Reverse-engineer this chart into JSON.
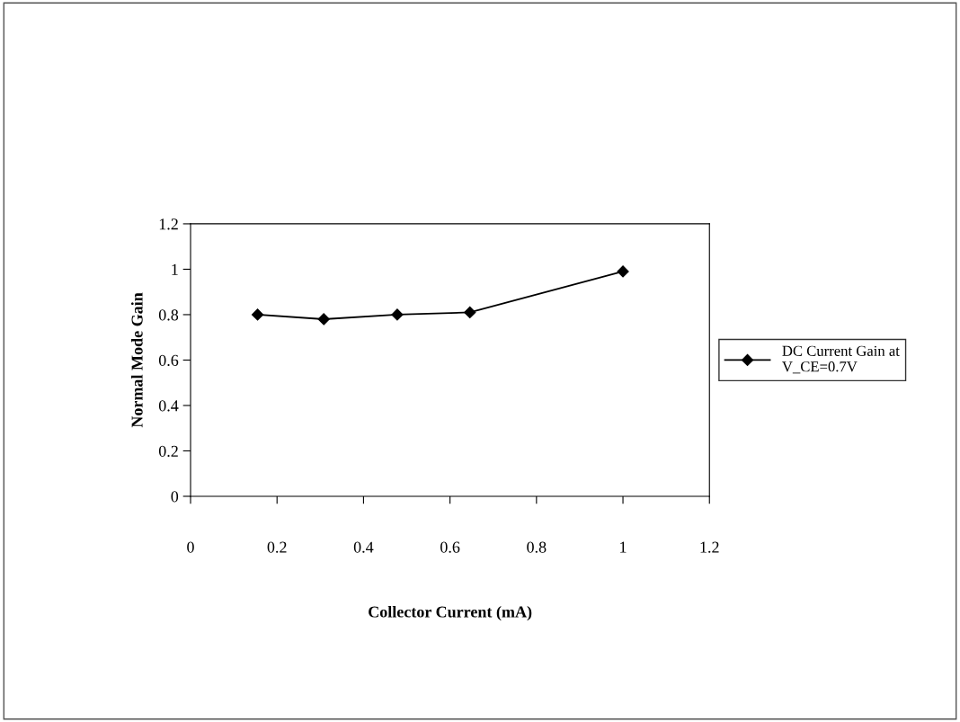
{
  "chart_data": {
    "type": "line",
    "xlabel": "Collector Current (mA)",
    "ylabel": "Normal Mode Gain",
    "x": [
      0.155,
      0.308,
      0.478,
      0.646,
      1.0
    ],
    "series": [
      {
        "name": "DC Current Gain at\nV_CE=0.7V",
        "color": "#000000",
        "values": [
          0.8,
          0.78,
          0.8,
          0.81,
          0.99
        ]
      }
    ],
    "xlim": [
      0,
      1.2
    ],
    "ylim": [
      0,
      1.2
    ],
    "xticks": [
      0,
      0.2,
      0.4,
      0.6,
      0.8,
      1,
      1.2
    ],
    "yticks": [
      0,
      0.2,
      0.4,
      0.6,
      0.8,
      1,
      1.2
    ],
    "grid": false,
    "legend": "right",
    "marker": "diamond",
    "line_style": "solid"
  }
}
